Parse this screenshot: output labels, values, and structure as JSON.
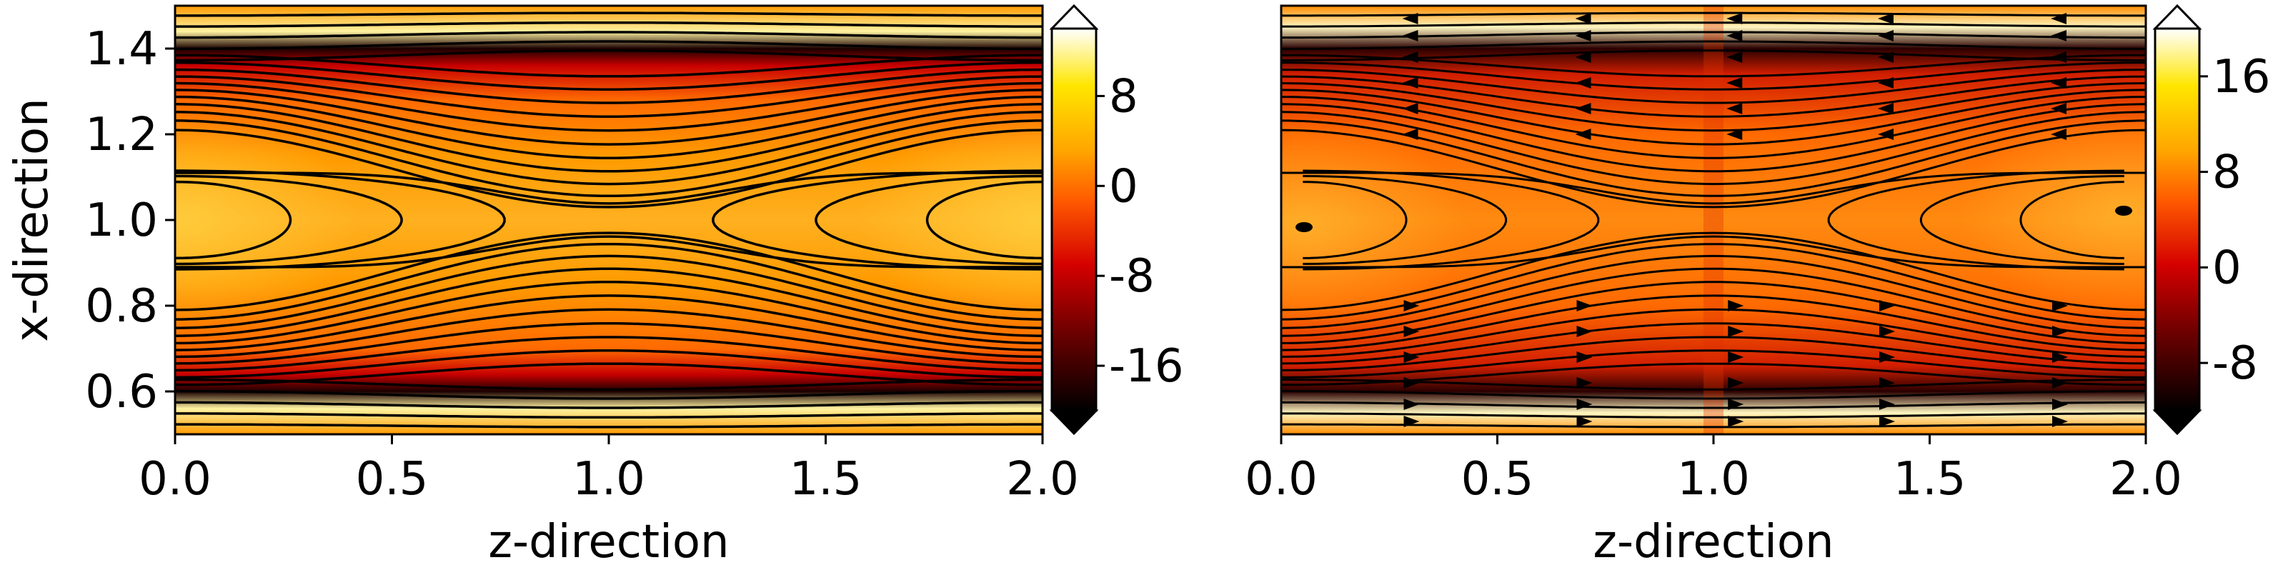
{
  "chart_data": [
    {
      "type": "heatmap",
      "title": "",
      "xlabel": "z-direction",
      "ylabel": "x-direction",
      "xlim": [
        0.0,
        2.0
      ],
      "ylim": [
        0.5,
        1.5
      ],
      "xticks": [
        "0.0",
        "0.5",
        "1.0",
        "1.5",
        "2.0"
      ],
      "yticks": [
        "0.6",
        "0.8",
        "1.0",
        "1.2",
        "1.4"
      ],
      "colorbar": {
        "ticks": [
          "8",
          "0",
          "-8",
          "-16"
        ],
        "range": [
          -20,
          14
        ],
        "extend": "both",
        "colormap": "hot"
      },
      "overlay": "magnetic field lines (contours)",
      "features": {
        "x_points_at_z": [
          1.0
        ],
        "o_points_at_z": [
          0.0,
          2.0
        ],
        "current_sheets_x": [
          0.6,
          1.4
        ]
      }
    },
    {
      "type": "heatmap",
      "title": "",
      "xlabel": "z-direction",
      "ylabel": "",
      "xlim": [
        0.0,
        2.0
      ],
      "ylim": [
        0.5,
        1.5
      ],
      "xticks": [
        "0.0",
        "0.5",
        "1.0",
        "1.5",
        "2.0"
      ],
      "yticks": [],
      "colorbar": {
        "ticks": [
          "16",
          "8",
          "0",
          "-8"
        ],
        "range": [
          -12,
          20
        ],
        "extend": "both",
        "colormap": "hot"
      },
      "overlay": "streamlines with arrows",
      "features": {
        "x_points_at_z": [
          1.0
        ],
        "o_points_at_z": [
          0.05,
          1.95
        ],
        "current_sheets_x": [
          0.6,
          1.4
        ]
      }
    }
  ],
  "colors": {
    "field_line": "#000000",
    "colormap_stops": [
      "#000000",
      "#6a0000",
      "#d40000",
      "#ff5a00",
      "#ffa500",
      "#ffe600",
      "#ffffff"
    ]
  }
}
